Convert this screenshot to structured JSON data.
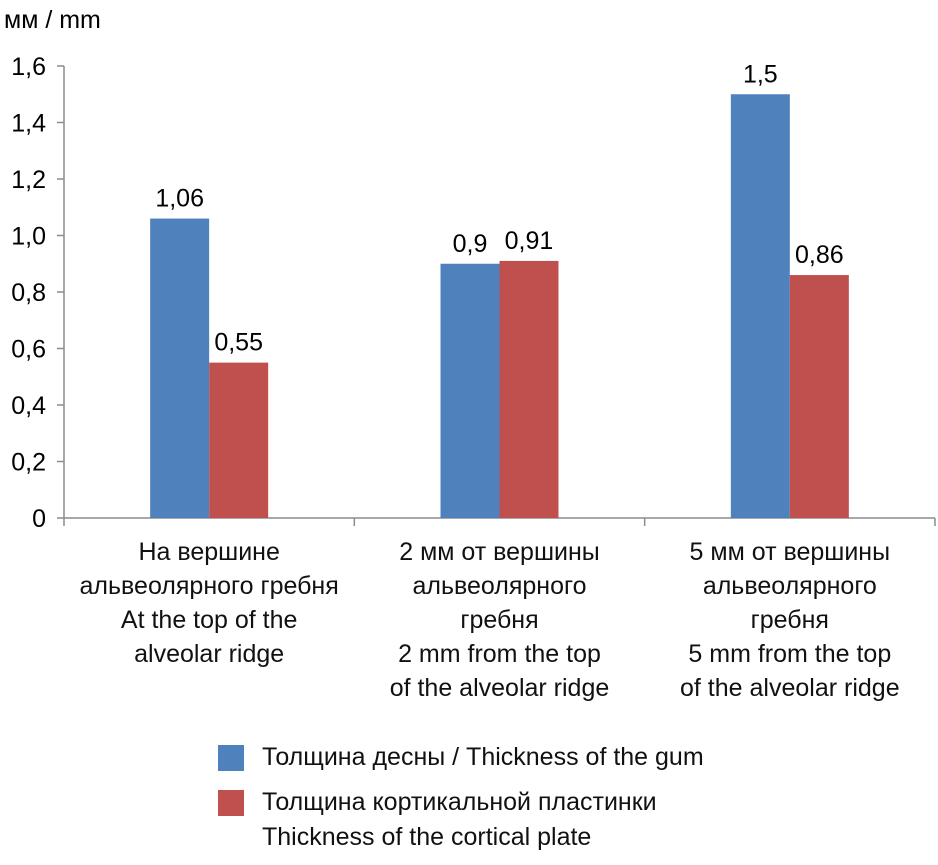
{
  "chart_data": {
    "type": "bar",
    "ylabel": "мм / mm",
    "ylim": [
      0,
      1.6
    ],
    "yticks": [
      "0",
      "0,2",
      "0,4",
      "0,6",
      "0,8",
      "1,0",
      "1,2",
      "1,4",
      "1,6"
    ],
    "categories": [
      "На вершине\nальвеолярного гребня\nAt the top of the\nalveolar ridge",
      "2 мм от вершины\nальвеолярного\nгребня\n2 mm from the top\nof the alveolar ridge",
      "5 мм от вершины\nальвеолярного\nгребня\n5 mm from the top\nof the alveolar ridge"
    ],
    "series": [
      {
        "name": "Толщина десны / Thickness of the gum",
        "color": "#4f81bd",
        "values": [
          1.06,
          0.9,
          1.5
        ],
        "labels": [
          "1,06",
          "0,9",
          "1,5"
        ]
      },
      {
        "name": "Толщина кортикальной пластинки\nThickness of the cortical plate",
        "color": "#c0504d",
        "values": [
          0.55,
          0.91,
          0.86
        ],
        "labels": [
          "0,55",
          "0,91",
          "0,86"
        ]
      }
    ],
    "legend_position": "bottom",
    "grid": false
  }
}
